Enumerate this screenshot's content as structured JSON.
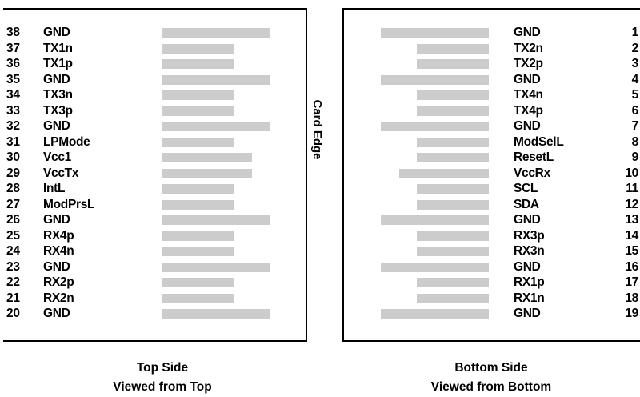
{
  "colors": {
    "bar": "#cccccc",
    "text": "#000000",
    "border": "#000000"
  },
  "top_side": {
    "caption_line1": "Top Side",
    "caption_line2": "Viewed from Top",
    "pins": [
      {
        "num": "38",
        "label": "GND",
        "bar": "long"
      },
      {
        "num": "37",
        "label": "TX1n",
        "bar": "short"
      },
      {
        "num": "36",
        "label": "TX1p",
        "bar": "short"
      },
      {
        "num": "35",
        "label": "GND",
        "bar": "long"
      },
      {
        "num": "34",
        "label": "TX3n",
        "bar": "short"
      },
      {
        "num": "33",
        "label": "TX3p",
        "bar": "short"
      },
      {
        "num": "32",
        "label": "GND",
        "bar": "long"
      },
      {
        "num": "31",
        "label": "LPMode",
        "bar": "short"
      },
      {
        "num": "30",
        "label": "Vcc1",
        "bar": "medium"
      },
      {
        "num": "29",
        "label": "VccTx",
        "bar": "medium"
      },
      {
        "num": "28",
        "label": "IntL",
        "bar": "short"
      },
      {
        "num": "27",
        "label": "ModPrsL",
        "bar": "short"
      },
      {
        "num": "26",
        "label": "GND",
        "bar": "long"
      },
      {
        "num": "25",
        "label": "RX4p",
        "bar": "short"
      },
      {
        "num": "24",
        "label": "RX4n",
        "bar": "short"
      },
      {
        "num": "23",
        "label": "GND",
        "bar": "long"
      },
      {
        "num": "22",
        "label": "RX2p",
        "bar": "short"
      },
      {
        "num": "21",
        "label": "RX2n",
        "bar": "short"
      },
      {
        "num": "20",
        "label": "GND",
        "bar": "long"
      }
    ]
  },
  "bottom_side": {
    "caption_line1": "Bottom Side",
    "caption_line2": "Viewed from Bottom",
    "pins": [
      {
        "num": "1",
        "label": "GND",
        "bar": "long"
      },
      {
        "num": "2",
        "label": "TX2n",
        "bar": "short"
      },
      {
        "num": "3",
        "label": "TX2p",
        "bar": "short"
      },
      {
        "num": "4",
        "label": "GND",
        "bar": "long"
      },
      {
        "num": "5",
        "label": "TX4n",
        "bar": "short"
      },
      {
        "num": "6",
        "label": "TX4p",
        "bar": "short"
      },
      {
        "num": "7",
        "label": "GND",
        "bar": "long"
      },
      {
        "num": "8",
        "label": "ModSelL",
        "bar": "short"
      },
      {
        "num": "9",
        "label": "ResetL",
        "bar": "short"
      },
      {
        "num": "10",
        "label": "VccRx",
        "bar": "medium"
      },
      {
        "num": "11",
        "label": "SCL",
        "bar": "short"
      },
      {
        "num": "12",
        "label": "SDA",
        "bar": "short"
      },
      {
        "num": "13",
        "label": "GND",
        "bar": "long"
      },
      {
        "num": "14",
        "label": "RX3p",
        "bar": "short"
      },
      {
        "num": "15",
        "label": "RX3n",
        "bar": "short"
      },
      {
        "num": "16",
        "label": "GND",
        "bar": "long"
      },
      {
        "num": "17",
        "label": "RX1p",
        "bar": "short"
      },
      {
        "num": "18",
        "label": "RX1n",
        "bar": "short"
      },
      {
        "num": "19",
        "label": "GND",
        "bar": "long"
      }
    ]
  },
  "card_edge_label": "Card Edge"
}
